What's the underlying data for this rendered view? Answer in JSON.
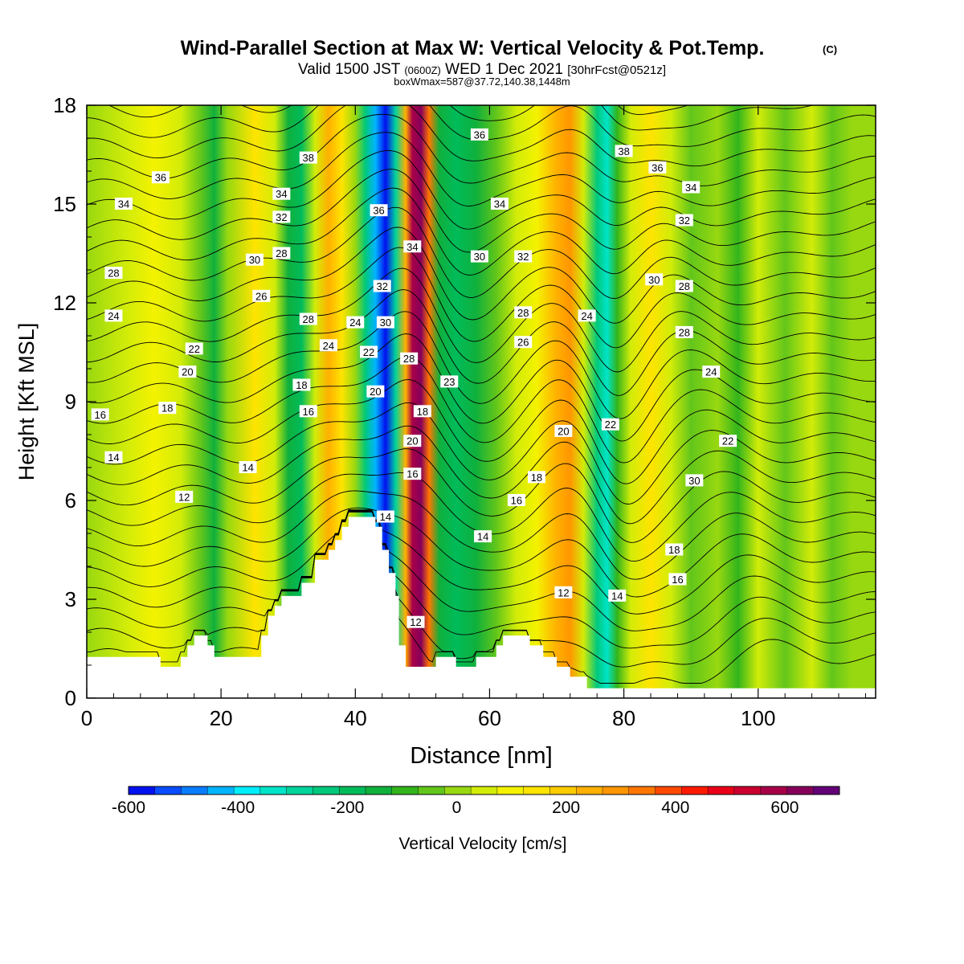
{
  "chart_data": {
    "type": "heatmap",
    "title": "Wind-Parallel Section at Max W: Vertical Velocity & Pot.Temp.",
    "copyright_mark": "(C)",
    "subtitle_main": "Valid 1500 JST",
    "subtitle_zulu": "(0600Z)",
    "subtitle_date": "WED 1 Dec 2021",
    "subtitle_run": "[30hrFcst@0521z]",
    "subtitle_2": "boxWmax=587@37.72,140.38,1448m",
    "xlabel": "Distance [nm]",
    "ylabel": "Height [Kft MSL]",
    "xlim": [
      0,
      117.5
    ],
    "ylim": [
      0,
      18
    ],
    "xticks": [
      0,
      20,
      40,
      60,
      80,
      100
    ],
    "yticks": [
      0,
      3,
      6,
      9,
      12,
      15,
      18
    ],
    "colorbar": {
      "label": "Vertical Velocity [cm/s]",
      "tick_values": [
        -600,
        -400,
        -200,
        0,
        200,
        400,
        600
      ],
      "tick_labels": [
        "-600",
        "-400",
        "-200",
        "0",
        "200",
        "400",
        "600"
      ],
      "bounds": [
        -600,
        700
      ],
      "colors": [
        "#0011f0",
        "#0a4cff",
        "#0a7cff",
        "#00b4ff",
        "#00eeff",
        "#00e4c8",
        "#00d49c",
        "#00c87c",
        "#00bb5a",
        "#10b03c",
        "#32b41c",
        "#62c61a",
        "#98d810",
        "#d2ec08",
        "#f4f200",
        "#ffe400",
        "#ffcc00",
        "#ffb000",
        "#ff9600",
        "#ff7600",
        "#ff4a00",
        "#ff1a00",
        "#ea0018",
        "#cc0030",
        "#a80048",
        "#86005a",
        "#640078"
      ]
    },
    "velocity_bands": [
      {
        "x": 0,
        "w": 0
      },
      {
        "x": 6,
        "w": 60
      },
      {
        "x": 10,
        "w": 80
      },
      {
        "x": 14,
        "w": 30
      },
      {
        "x": 17,
        "w": -60
      },
      {
        "x": 19,
        "w": -150
      },
      {
        "x": 21,
        "w": -20
      },
      {
        "x": 25,
        "w": 130
      },
      {
        "x": 28,
        "w": 40
      },
      {
        "x": 30,
        "w": -120
      },
      {
        "x": 32,
        "w": -170
      },
      {
        "x": 34,
        "w": 70
      },
      {
        "x": 36,
        "w": 230
      },
      {
        "x": 38,
        "w": 130
      },
      {
        "x": 40,
        "w": 10
      },
      {
        "x": 41.5,
        "w": -240
      },
      {
        "x": 43,
        "w": -420
      },
      {
        "x": 44.5,
        "w": -560
      },
      {
        "x": 46,
        "w": -300
      },
      {
        "x": 47.5,
        "w": 260
      },
      {
        "x": 48.5,
        "w": 560
      },
      {
        "x": 49.8,
        "w": 640
      },
      {
        "x": 51,
        "w": 330
      },
      {
        "x": 52.5,
        "w": -120
      },
      {
        "x": 55,
        "w": -210
      },
      {
        "x": 58,
        "w": -160
      },
      {
        "x": 61,
        "w": -60
      },
      {
        "x": 64,
        "w": 30
      },
      {
        "x": 67,
        "w": 110
      },
      {
        "x": 70,
        "w": 230
      },
      {
        "x": 72,
        "w": 310
      },
      {
        "x": 74,
        "w": 60
      },
      {
        "x": 76,
        "w": -230
      },
      {
        "x": 77.5,
        "w": -340
      },
      {
        "x": 79,
        "w": -110
      },
      {
        "x": 81,
        "w": 70
      },
      {
        "x": 84,
        "w": 140
      },
      {
        "x": 87,
        "w": 60
      },
      {
        "x": 90,
        "w": -60
      },
      {
        "x": 94,
        "w": 10
      },
      {
        "x": 97,
        "w": -100
      },
      {
        "x": 100,
        "w": 30
      },
      {
        "x": 104,
        "w": -40
      },
      {
        "x": 108,
        "w": 60
      },
      {
        "x": 111,
        "w": -60
      },
      {
        "x": 114,
        "w": 20
      },
      {
        "x": 117.5,
        "w": 0
      }
    ],
    "terrain": [
      {
        "x": 0,
        "h": 1.25
      },
      {
        "x": 11,
        "h": 1.25
      },
      {
        "x": 11,
        "h": 0.95
      },
      {
        "x": 14,
        "h": 0.95
      },
      {
        "x": 14,
        "h": 1.25
      },
      {
        "x": 15,
        "h": 1.25
      },
      {
        "x": 15,
        "h": 1.6
      },
      {
        "x": 16,
        "h": 1.6
      },
      {
        "x": 16,
        "h": 1.9
      },
      {
        "x": 18,
        "h": 1.9
      },
      {
        "x": 18,
        "h": 1.6
      },
      {
        "x": 19,
        "h": 1.6
      },
      {
        "x": 19,
        "h": 1.25
      },
      {
        "x": 26,
        "h": 1.25
      },
      {
        "x": 26,
        "h": 1.9
      },
      {
        "x": 27,
        "h": 1.9
      },
      {
        "x": 27,
        "h": 2.5
      },
      {
        "x": 28,
        "h": 2.5
      },
      {
        "x": 28,
        "h": 2.8
      },
      {
        "x": 29,
        "h": 2.8
      },
      {
        "x": 29,
        "h": 3.1
      },
      {
        "x": 32,
        "h": 3.1
      },
      {
        "x": 32,
        "h": 3.5
      },
      {
        "x": 34,
        "h": 3.5
      },
      {
        "x": 34,
        "h": 4.2
      },
      {
        "x": 36,
        "h": 4.2
      },
      {
        "x": 36,
        "h": 4.5
      },
      {
        "x": 37,
        "h": 4.5
      },
      {
        "x": 37,
        "h": 4.8
      },
      {
        "x": 38,
        "h": 4.8
      },
      {
        "x": 38,
        "h": 5.2
      },
      {
        "x": 39,
        "h": 5.2
      },
      {
        "x": 39,
        "h": 5.5
      },
      {
        "x": 43,
        "h": 5.5
      },
      {
        "x": 43,
        "h": 5.2
      },
      {
        "x": 44,
        "h": 5.2
      },
      {
        "x": 44,
        "h": 4.5
      },
      {
        "x": 45,
        "h": 4.5
      },
      {
        "x": 45,
        "h": 3.8
      },
      {
        "x": 46,
        "h": 3.8
      },
      {
        "x": 46,
        "h": 3.1
      },
      {
        "x": 46.5,
        "h": 3.1
      },
      {
        "x": 46.5,
        "h": 1.6
      },
      {
        "x": 47.5,
        "h": 1.6
      },
      {
        "x": 47.5,
        "h": 0.95
      },
      {
        "x": 52,
        "h": 0.95
      },
      {
        "x": 52,
        "h": 1.25
      },
      {
        "x": 55,
        "h": 1.25
      },
      {
        "x": 55,
        "h": 0.95
      },
      {
        "x": 58,
        "h": 0.95
      },
      {
        "x": 58,
        "h": 1.25
      },
      {
        "x": 61,
        "h": 1.25
      },
      {
        "x": 61,
        "h": 1.6
      },
      {
        "x": 62,
        "h": 1.6
      },
      {
        "x": 62,
        "h": 1.9
      },
      {
        "x": 66,
        "h": 1.9
      },
      {
        "x": 66,
        "h": 1.6
      },
      {
        "x": 68,
        "h": 1.6
      },
      {
        "x": 68,
        "h": 1.25
      },
      {
        "x": 70,
        "h": 1.25
      },
      {
        "x": 70,
        "h": 0.95
      },
      {
        "x": 72,
        "h": 0.95
      },
      {
        "x": 72,
        "h": 0.65
      },
      {
        "x": 74.5,
        "h": 0.65
      },
      {
        "x": 74.5,
        "h": 0.3
      },
      {
        "x": 117.5,
        "h": 0.3
      }
    ],
    "theta_contours": {
      "start": 11,
      "end": 39,
      "step": 1,
      "labels": [
        {
          "text": "12",
          "x": 14.5,
          "y": 6.1
        },
        {
          "text": "14",
          "x": 24,
          "y": 7
        },
        {
          "text": "14",
          "x": 4,
          "y": 7.3
        },
        {
          "text": "16",
          "x": 2,
          "y": 8.6
        },
        {
          "text": "18",
          "x": 12,
          "y": 8.8
        },
        {
          "text": "20",
          "x": 15,
          "y": 9.9
        },
        {
          "text": "22",
          "x": 16,
          "y": 10.6
        },
        {
          "text": "24",
          "x": 4,
          "y": 11.6
        },
        {
          "text": "28",
          "x": 4,
          "y": 12.9
        },
        {
          "text": "30",
          "x": 25,
          "y": 13.3
        },
        {
          "text": "28",
          "x": 29,
          "y": 13.5
        },
        {
          "text": "26",
          "x": 26,
          "y": 12.2
        },
        {
          "text": "32",
          "x": 29,
          "y": 14.6
        },
        {
          "text": "34",
          "x": 29,
          "y": 15.3
        },
        {
          "text": "34",
          "x": 5.5,
          "y": 15
        },
        {
          "text": "36",
          "x": 11,
          "y": 15.8
        },
        {
          "text": "38",
          "x": 33,
          "y": 16.4
        },
        {
          "text": "28",
          "x": 33,
          "y": 11.5
        },
        {
          "text": "24",
          "x": 36,
          "y": 10.7
        },
        {
          "text": "24",
          "x": 40,
          "y": 11.4
        },
        {
          "text": "18",
          "x": 32,
          "y": 9.5
        },
        {
          "text": "16",
          "x": 33,
          "y": 8.7
        },
        {
          "text": "22",
          "x": 42,
          "y": 10.5
        },
        {
          "text": "20",
          "x": 43,
          "y": 9.3
        },
        {
          "text": "30",
          "x": 44.5,
          "y": 11.4
        },
        {
          "text": "32",
          "x": 44,
          "y": 12.5
        },
        {
          "text": "36",
          "x": 43.5,
          "y": 14.8
        },
        {
          "text": "14",
          "x": 44.5,
          "y": 5.5
        },
        {
          "text": "34",
          "x": 48.5,
          "y": 13.7
        },
        {
          "text": "28",
          "x": 48,
          "y": 10.3
        },
        {
          "text": "18",
          "x": 50,
          "y": 8.7
        },
        {
          "text": "20",
          "x": 48.5,
          "y": 7.8
        },
        {
          "text": "16",
          "x": 48.5,
          "y": 6.8
        },
        {
          "text": "12",
          "x": 49,
          "y": 2.3
        },
        {
          "text": "23",
          "x": 54,
          "y": 9.6
        },
        {
          "text": "30",
          "x": 58.5,
          "y": 13.4
        },
        {
          "text": "32",
          "x": 65,
          "y": 13.4
        },
        {
          "text": "34",
          "x": 61.5,
          "y": 15
        },
        {
          "text": "36",
          "x": 58.5,
          "y": 17.1
        },
        {
          "text": "28",
          "x": 65,
          "y": 11.7
        },
        {
          "text": "26",
          "x": 65,
          "y": 10.8
        },
        {
          "text": "18",
          "x": 67,
          "y": 6.7
        },
        {
          "text": "16",
          "x": 64,
          "y": 6
        },
        {
          "text": "14",
          "x": 59,
          "y": 4.9
        },
        {
          "text": "12",
          "x": 71,
          "y": 3.2
        },
        {
          "text": "20",
          "x": 71,
          "y": 8.1
        },
        {
          "text": "24",
          "x": 74.5,
          "y": 11.6
        },
        {
          "text": "22",
          "x": 78,
          "y": 8.3
        },
        {
          "text": "14",
          "x": 79,
          "y": 3.1
        },
        {
          "text": "38",
          "x": 80,
          "y": 16.6
        },
        {
          "text": "36",
          "x": 85,
          "y": 16.1
        },
        {
          "text": "34",
          "x": 90,
          "y": 15.5
        },
        {
          "text": "32",
          "x": 89,
          "y": 14.5
        },
        {
          "text": "30",
          "x": 84.5,
          "y": 12.7
        },
        {
          "text": "28",
          "x": 89,
          "y": 12.5
        },
        {
          "text": "28",
          "x": 89,
          "y": 11.1
        },
        {
          "text": "24",
          "x": 93,
          "y": 9.9
        },
        {
          "text": "22",
          "x": 95.5,
          "y": 7.8
        },
        {
          "text": "30",
          "x": 90.5,
          "y": 6.6
        },
        {
          "text": "18",
          "x": 87.5,
          "y": 4.5
        },
        {
          "text": "16",
          "x": 88,
          "y": 3.6
        }
      ]
    }
  }
}
